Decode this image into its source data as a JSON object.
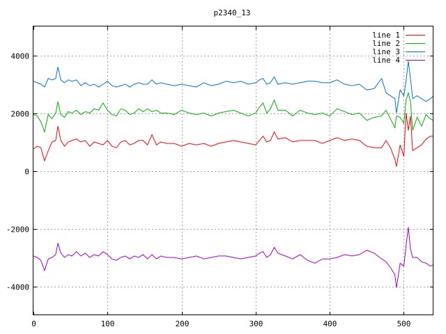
{
  "chart_data": {
    "type": "line",
    "title": "p2340_13",
    "xlabel": "",
    "ylabel": "",
    "xlim": [
      0,
      540
    ],
    "ylim": [
      -5000,
      5000
    ],
    "xticks": [
      0,
      100,
      200,
      300,
      400,
      500
    ],
    "yticks": [
      -4000,
      -2000,
      0,
      2000,
      4000
    ],
    "grid": true,
    "legend_position": "top-right",
    "series": [
      {
        "name": "line 1",
        "color": "#ff0000",
        "points": [
          [
            0,
            750
          ],
          [
            5,
            850
          ],
          [
            10,
            800
          ],
          [
            15,
            350
          ],
          [
            20,
            700
          ],
          [
            25,
            1000
          ],
          [
            30,
            1050
          ],
          [
            33,
            1550
          ],
          [
            37,
            1050
          ],
          [
            42,
            850
          ],
          [
            47,
            1000
          ],
          [
            52,
            1050
          ],
          [
            58,
            1100
          ],
          [
            64,
            1000
          ],
          [
            70,
            1050
          ],
          [
            76,
            850
          ],
          [
            82,
            1000
          ],
          [
            88,
            950
          ],
          [
            94,
            900
          ],
          [
            100,
            1050
          ],
          [
            106,
            850
          ],
          [
            112,
            800
          ],
          [
            118,
            1000
          ],
          [
            124,
            1050
          ],
          [
            130,
            900
          ],
          [
            136,
            950
          ],
          [
            142,
            1050
          ],
          [
            148,
            1050
          ],
          [
            154,
            900
          ],
          [
            160,
            1250
          ],
          [
            166,
            900
          ],
          [
            172,
            1000
          ],
          [
            180,
            950
          ],
          [
            190,
            950
          ],
          [
            200,
            850
          ],
          [
            210,
            950
          ],
          [
            220,
            900
          ],
          [
            230,
            950
          ],
          [
            240,
            850
          ],
          [
            250,
            950
          ],
          [
            260,
            1000
          ],
          [
            270,
            1050
          ],
          [
            280,
            1000
          ],
          [
            290,
            950
          ],
          [
            300,
            900
          ],
          [
            305,
            1050
          ],
          [
            310,
            1200
          ],
          [
            315,
            1000
          ],
          [
            320,
            1050
          ],
          [
            325,
            1350
          ],
          [
            330,
            1100
          ],
          [
            340,
            1150
          ],
          [
            350,
            1000
          ],
          [
            360,
            1050
          ],
          [
            370,
            1050
          ],
          [
            380,
            1050
          ],
          [
            390,
            950
          ],
          [
            400,
            1050
          ],
          [
            410,
            1150
          ],
          [
            420,
            1050
          ],
          [
            430,
            1100
          ],
          [
            440,
            1050
          ],
          [
            450,
            850
          ],
          [
            460,
            800
          ],
          [
            470,
            800
          ],
          [
            476,
            1050
          ],
          [
            482,
            800
          ],
          [
            488,
            400
          ],
          [
            490,
            150
          ],
          [
            495,
            900
          ],
          [
            500,
            500
          ],
          [
            503,
            2000
          ],
          [
            506,
            1400
          ],
          [
            509,
            1900
          ],
          [
            512,
            700
          ],
          [
            518,
            800
          ],
          [
            524,
            900
          ],
          [
            530,
            1100
          ],
          [
            536,
            1200
          ],
          [
            540,
            1200
          ]
        ]
      },
      {
        "name": "line 2",
        "color": "#00b000",
        "points": [
          [
            0,
            1950
          ],
          [
            5,
            1900
          ],
          [
            10,
            1700
          ],
          [
            15,
            1350
          ],
          [
            20,
            1950
          ],
          [
            25,
            1800
          ],
          [
            30,
            2000
          ],
          [
            33,
            2400
          ],
          [
            37,
            1950
          ],
          [
            42,
            1850
          ],
          [
            47,
            2050
          ],
          [
            52,
            2000
          ],
          [
            58,
            2100
          ],
          [
            64,
            1950
          ],
          [
            70,
            2050
          ],
          [
            76,
            2000
          ],
          [
            82,
            2150
          ],
          [
            88,
            2100
          ],
          [
            94,
            2350
          ],
          [
            100,
            2100
          ],
          [
            106,
            1950
          ],
          [
            112,
            1900
          ],
          [
            118,
            2150
          ],
          [
            124,
            2100
          ],
          [
            130,
            1950
          ],
          [
            136,
            2000
          ],
          [
            142,
            2150
          ],
          [
            148,
            2050
          ],
          [
            154,
            2150
          ],
          [
            160,
            2050
          ],
          [
            166,
            2100
          ],
          [
            172,
            2000
          ],
          [
            180,
            2000
          ],
          [
            190,
            1950
          ],
          [
            200,
            2100
          ],
          [
            210,
            2000
          ],
          [
            220,
            1950
          ],
          [
            230,
            2000
          ],
          [
            240,
            1900
          ],
          [
            250,
            2000
          ],
          [
            260,
            2050
          ],
          [
            270,
            2100
          ],
          [
            280,
            2000
          ],
          [
            290,
            1900
          ],
          [
            300,
            2000
          ],
          [
            305,
            2200
          ],
          [
            310,
            2350
          ],
          [
            315,
            2000
          ],
          [
            320,
            2150
          ],
          [
            325,
            2450
          ],
          [
            330,
            2100
          ],
          [
            340,
            2100
          ],
          [
            350,
            1900
          ],
          [
            360,
            2100
          ],
          [
            370,
            2000
          ],
          [
            380,
            1950
          ],
          [
            390,
            2000
          ],
          [
            400,
            1900
          ],
          [
            410,
            2150
          ],
          [
            420,
            2050
          ],
          [
            430,
            1950
          ],
          [
            440,
            2000
          ],
          [
            450,
            1750
          ],
          [
            460,
            1850
          ],
          [
            470,
            1900
          ],
          [
            476,
            2100
          ],
          [
            482,
            1800
          ],
          [
            488,
            1500
          ],
          [
            490,
            1900
          ],
          [
            495,
            1850
          ],
          [
            500,
            1650
          ],
          [
            503,
            2450
          ],
          [
            506,
            2700
          ],
          [
            509,
            2400
          ],
          [
            512,
            1400
          ],
          [
            518,
            1850
          ],
          [
            524,
            1550
          ],
          [
            530,
            1950
          ],
          [
            536,
            1800
          ],
          [
            540,
            1750
          ]
        ]
      },
      {
        "name": "line 3",
        "color": "#0070e0",
        "points": [
          [
            0,
            3100
          ],
          [
            5,
            3050
          ],
          [
            10,
            3000
          ],
          [
            15,
            2900
          ],
          [
            20,
            3200
          ],
          [
            25,
            3150
          ],
          [
            30,
            3200
          ],
          [
            33,
            3600
          ],
          [
            37,
            3150
          ],
          [
            42,
            3050
          ],
          [
            47,
            3150
          ],
          [
            52,
            3100
          ],
          [
            58,
            3150
          ],
          [
            64,
            2950
          ],
          [
            70,
            3050
          ],
          [
            76,
            2950
          ],
          [
            82,
            3000
          ],
          [
            88,
            2900
          ],
          [
            94,
            3000
          ],
          [
            100,
            3100
          ],
          [
            106,
            2950
          ],
          [
            112,
            2900
          ],
          [
            118,
            2950
          ],
          [
            124,
            3000
          ],
          [
            130,
            2900
          ],
          [
            136,
            3000
          ],
          [
            142,
            3050
          ],
          [
            148,
            3000
          ],
          [
            154,
            3000
          ],
          [
            160,
            3150
          ],
          [
            166,
            3000
          ],
          [
            172,
            3050
          ],
          [
            180,
            3000
          ],
          [
            190,
            2950
          ],
          [
            200,
            3000
          ],
          [
            210,
            2950
          ],
          [
            220,
            2900
          ],
          [
            230,
            3050
          ],
          [
            240,
            2950
          ],
          [
            250,
            3000
          ],
          [
            260,
            3100
          ],
          [
            270,
            3050
          ],
          [
            280,
            3100
          ],
          [
            290,
            3000
          ],
          [
            300,
            3050
          ],
          [
            305,
            3150
          ],
          [
            310,
            3200
          ],
          [
            315,
            3000
          ],
          [
            320,
            3050
          ],
          [
            325,
            3250
          ],
          [
            330,
            3000
          ],
          [
            340,
            3050
          ],
          [
            350,
            3000
          ],
          [
            360,
            3050
          ],
          [
            370,
            3100
          ],
          [
            380,
            3100
          ],
          [
            390,
            3050
          ],
          [
            400,
            3050
          ],
          [
            410,
            3150
          ],
          [
            420,
            3000
          ],
          [
            430,
            2950
          ],
          [
            440,
            3000
          ],
          [
            450,
            2800
          ],
          [
            460,
            2850
          ],
          [
            470,
            3200
          ],
          [
            476,
            2700
          ],
          [
            482,
            2600
          ],
          [
            488,
            2500
          ],
          [
            490,
            2000
          ],
          [
            495,
            2800
          ],
          [
            500,
            2600
          ],
          [
            503,
            3100
          ],
          [
            506,
            3800
          ],
          [
            509,
            3200
          ],
          [
            512,
            2500
          ],
          [
            518,
            2600
          ],
          [
            524,
            2500
          ],
          [
            530,
            2400
          ],
          [
            536,
            2500
          ],
          [
            540,
            2600
          ]
        ]
      },
      {
        "name": "line 4",
        "color": "#a000d0",
        "points": [
          [
            0,
            -2950
          ],
          [
            5,
            -3000
          ],
          [
            10,
            -3100
          ],
          [
            15,
            -3450
          ],
          [
            20,
            -3050
          ],
          [
            25,
            -3000
          ],
          [
            30,
            -2900
          ],
          [
            33,
            -2500
          ],
          [
            37,
            -2850
          ],
          [
            42,
            -3000
          ],
          [
            47,
            -2900
          ],
          [
            52,
            -2950
          ],
          [
            58,
            -2800
          ],
          [
            64,
            -2950
          ],
          [
            70,
            -2850
          ],
          [
            76,
            -3000
          ],
          [
            82,
            -2900
          ],
          [
            88,
            -2950
          ],
          [
            94,
            -2800
          ],
          [
            100,
            -2900
          ],
          [
            106,
            -3050
          ],
          [
            112,
            -3100
          ],
          [
            118,
            -3000
          ],
          [
            124,
            -2950
          ],
          [
            130,
            -3050
          ],
          [
            136,
            -2950
          ],
          [
            142,
            -3000
          ],
          [
            148,
            -2900
          ],
          [
            154,
            -3050
          ],
          [
            160,
            -2900
          ],
          [
            166,
            -3050
          ],
          [
            172,
            -2950
          ],
          [
            180,
            -3000
          ],
          [
            190,
            -3000
          ],
          [
            200,
            -3050
          ],
          [
            210,
            -3000
          ],
          [
            220,
            -2950
          ],
          [
            230,
            -3050
          ],
          [
            240,
            -3000
          ],
          [
            250,
            -2950
          ],
          [
            260,
            -2950
          ],
          [
            270,
            -3000
          ],
          [
            280,
            -3050
          ],
          [
            290,
            -3000
          ],
          [
            300,
            -2950
          ],
          [
            305,
            -2850
          ],
          [
            310,
            -2800
          ],
          [
            315,
            -3000
          ],
          [
            320,
            -2900
          ],
          [
            325,
            -2650
          ],
          [
            330,
            -2850
          ],
          [
            340,
            -2950
          ],
          [
            350,
            -3050
          ],
          [
            360,
            -2900
          ],
          [
            370,
            -3100
          ],
          [
            380,
            -3200
          ],
          [
            390,
            -3050
          ],
          [
            400,
            -3050
          ],
          [
            410,
            -3000
          ],
          [
            420,
            -2900
          ],
          [
            430,
            -2950
          ],
          [
            440,
            -2900
          ],
          [
            450,
            -2750
          ],
          [
            460,
            -2850
          ],
          [
            470,
            -3050
          ],
          [
            476,
            -3150
          ],
          [
            482,
            -3350
          ],
          [
            488,
            -3600
          ],
          [
            490,
            -4050
          ],
          [
            495,
            -3200
          ],
          [
            500,
            -3300
          ],
          [
            503,
            -2600
          ],
          [
            506,
            -1950
          ],
          [
            509,
            -2700
          ],
          [
            512,
            -3000
          ],
          [
            518,
            -3000
          ],
          [
            524,
            -3150
          ],
          [
            530,
            -3200
          ],
          [
            536,
            -3300
          ],
          [
            540,
            -3250
          ]
        ]
      }
    ]
  }
}
